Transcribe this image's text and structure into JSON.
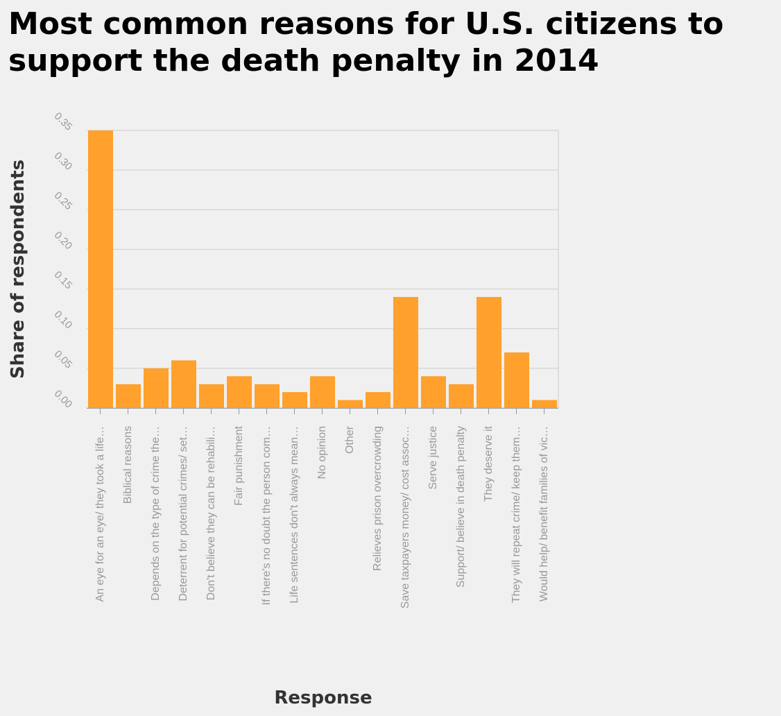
{
  "chart_data": {
    "type": "bar",
    "title": "Most common reasons for U.S. citizens to support the death penalty in 2014",
    "xlabel": "Response",
    "ylabel": "Share of respondents",
    "ylim": [
      0,
      0.35
    ],
    "yticks": [
      "0.00",
      "0.05",
      "0.10",
      "0.15",
      "0.20",
      "0.25",
      "0.30",
      "0.35"
    ],
    "grid": true,
    "bar_color": "#ffa12c",
    "categories": [
      "An eye for an eye/ they took a life…",
      "Biblical reasons",
      "Depends on the type of crime the…",
      "Deterrent for potential crimes/ set…",
      "Don't believe they can be rehabili…",
      "Fair punishment",
      "If there's no doubt the person com…",
      "Life sentences don't always mean…",
      "No opinion",
      "Other",
      "Relieves prison overcrowding",
      "Save taxpayers money/ cost assoc…",
      "Serve justice",
      "Support/ believe in death penalty",
      "They deserve it",
      "They will repeat crime/ keep them…",
      "Would help/ benefit families of vic…"
    ],
    "values": [
      0.35,
      0.03,
      0.05,
      0.06,
      0.03,
      0.04,
      0.03,
      0.02,
      0.04,
      0.01,
      0.02,
      0.14,
      0.04,
      0.03,
      0.14,
      0.07,
      0.01
    ]
  }
}
